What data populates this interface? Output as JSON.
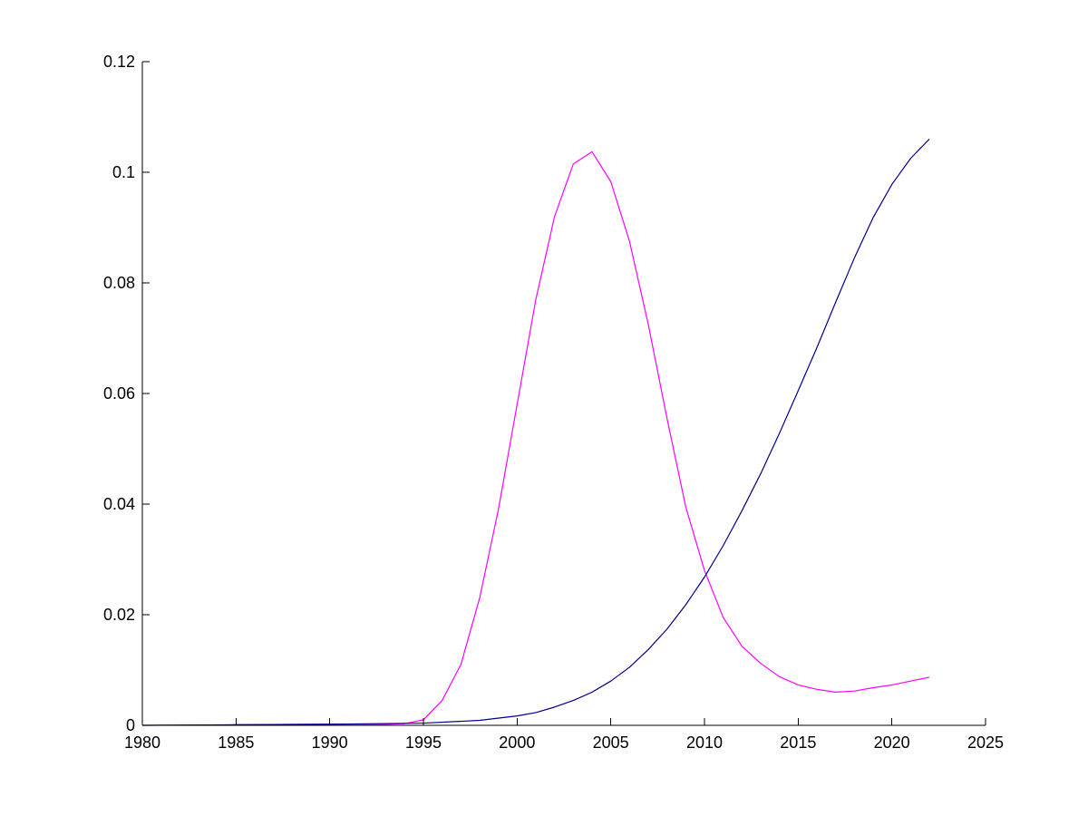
{
  "chart_data": {
    "type": "line",
    "title": "",
    "xlabel": "",
    "ylabel": "",
    "xlim": [
      1980,
      2025
    ],
    "ylim": [
      0,
      0.12
    ],
    "grid": false,
    "legend": "none",
    "x_ticks": [
      1980,
      1985,
      1990,
      1995,
      2000,
      2005,
      2010,
      2015,
      2020,
      2025
    ],
    "x_tick_labels": [
      "1980",
      "1985",
      "1990",
      "1995",
      "2000",
      "2005",
      "2010",
      "2015",
      "2020",
      "2025"
    ],
    "y_ticks": [
      0,
      0.02,
      0.04,
      0.06,
      0.08,
      0.1,
      0.12
    ],
    "y_tick_labels": [
      "0",
      "0.02",
      "0.04",
      "0.06",
      "0.08",
      "0.1",
      "0.12"
    ],
    "series": [
      {
        "color": "#ff00ff",
        "points": [
          [
            1980,
            0
          ],
          [
            1985,
            0.0001
          ],
          [
            1990,
            0.0002
          ],
          [
            1993,
            0.0002
          ],
          [
            1994,
            0.0003
          ],
          [
            1995,
            0.001
          ],
          [
            1996,
            0.0045
          ],
          [
            1997,
            0.011
          ],
          [
            1998,
            0.023
          ],
          [
            1999,
            0.039
          ],
          [
            2000,
            0.058
          ],
          [
            2001,
            0.077
          ],
          [
            2002,
            0.092
          ],
          [
            2003,
            0.1015
          ],
          [
            2004,
            0.1037
          ],
          [
            2005,
            0.0983
          ],
          [
            2006,
            0.0875
          ],
          [
            2007,
            0.0725
          ],
          [
            2008,
            0.0555
          ],
          [
            2009,
            0.0395
          ],
          [
            2010,
            0.028
          ],
          [
            2011,
            0.0195
          ],
          [
            2012,
            0.0143
          ],
          [
            2013,
            0.0112
          ],
          [
            2014,
            0.0088
          ],
          [
            2015,
            0.0073
          ],
          [
            2016,
            0.0065
          ],
          [
            2017,
            0.006
          ],
          [
            2018,
            0.0062
          ],
          [
            2019,
            0.0068
          ],
          [
            2020,
            0.0073
          ],
          [
            2021,
            0.008
          ],
          [
            2022,
            0.0087
          ]
        ]
      },
      {
        "color": "#00008b",
        "points": [
          [
            1980,
            0
          ],
          [
            1985,
            0.0001
          ],
          [
            1990,
            0.0002
          ],
          [
            1995,
            0.0004
          ],
          [
            1998,
            0.0009
          ],
          [
            2000,
            0.0017
          ],
          [
            2001,
            0.0023
          ],
          [
            2002,
            0.0033
          ],
          [
            2003,
            0.0045
          ],
          [
            2004,
            0.006
          ],
          [
            2005,
            0.008
          ],
          [
            2006,
            0.0105
          ],
          [
            2007,
            0.0137
          ],
          [
            2008,
            0.0174
          ],
          [
            2009,
            0.0218
          ],
          [
            2010,
            0.0268
          ],
          [
            2011,
            0.0325
          ],
          [
            2012,
            0.0388
          ],
          [
            2013,
            0.0455
          ],
          [
            2014,
            0.0528
          ],
          [
            2015,
            0.0605
          ],
          [
            2016,
            0.0683
          ],
          [
            2017,
            0.0765
          ],
          [
            2018,
            0.0845
          ],
          [
            2019,
            0.0918
          ],
          [
            2020,
            0.0978
          ],
          [
            2021,
            0.1025
          ],
          [
            2022,
            0.106
          ]
        ]
      }
    ]
  }
}
